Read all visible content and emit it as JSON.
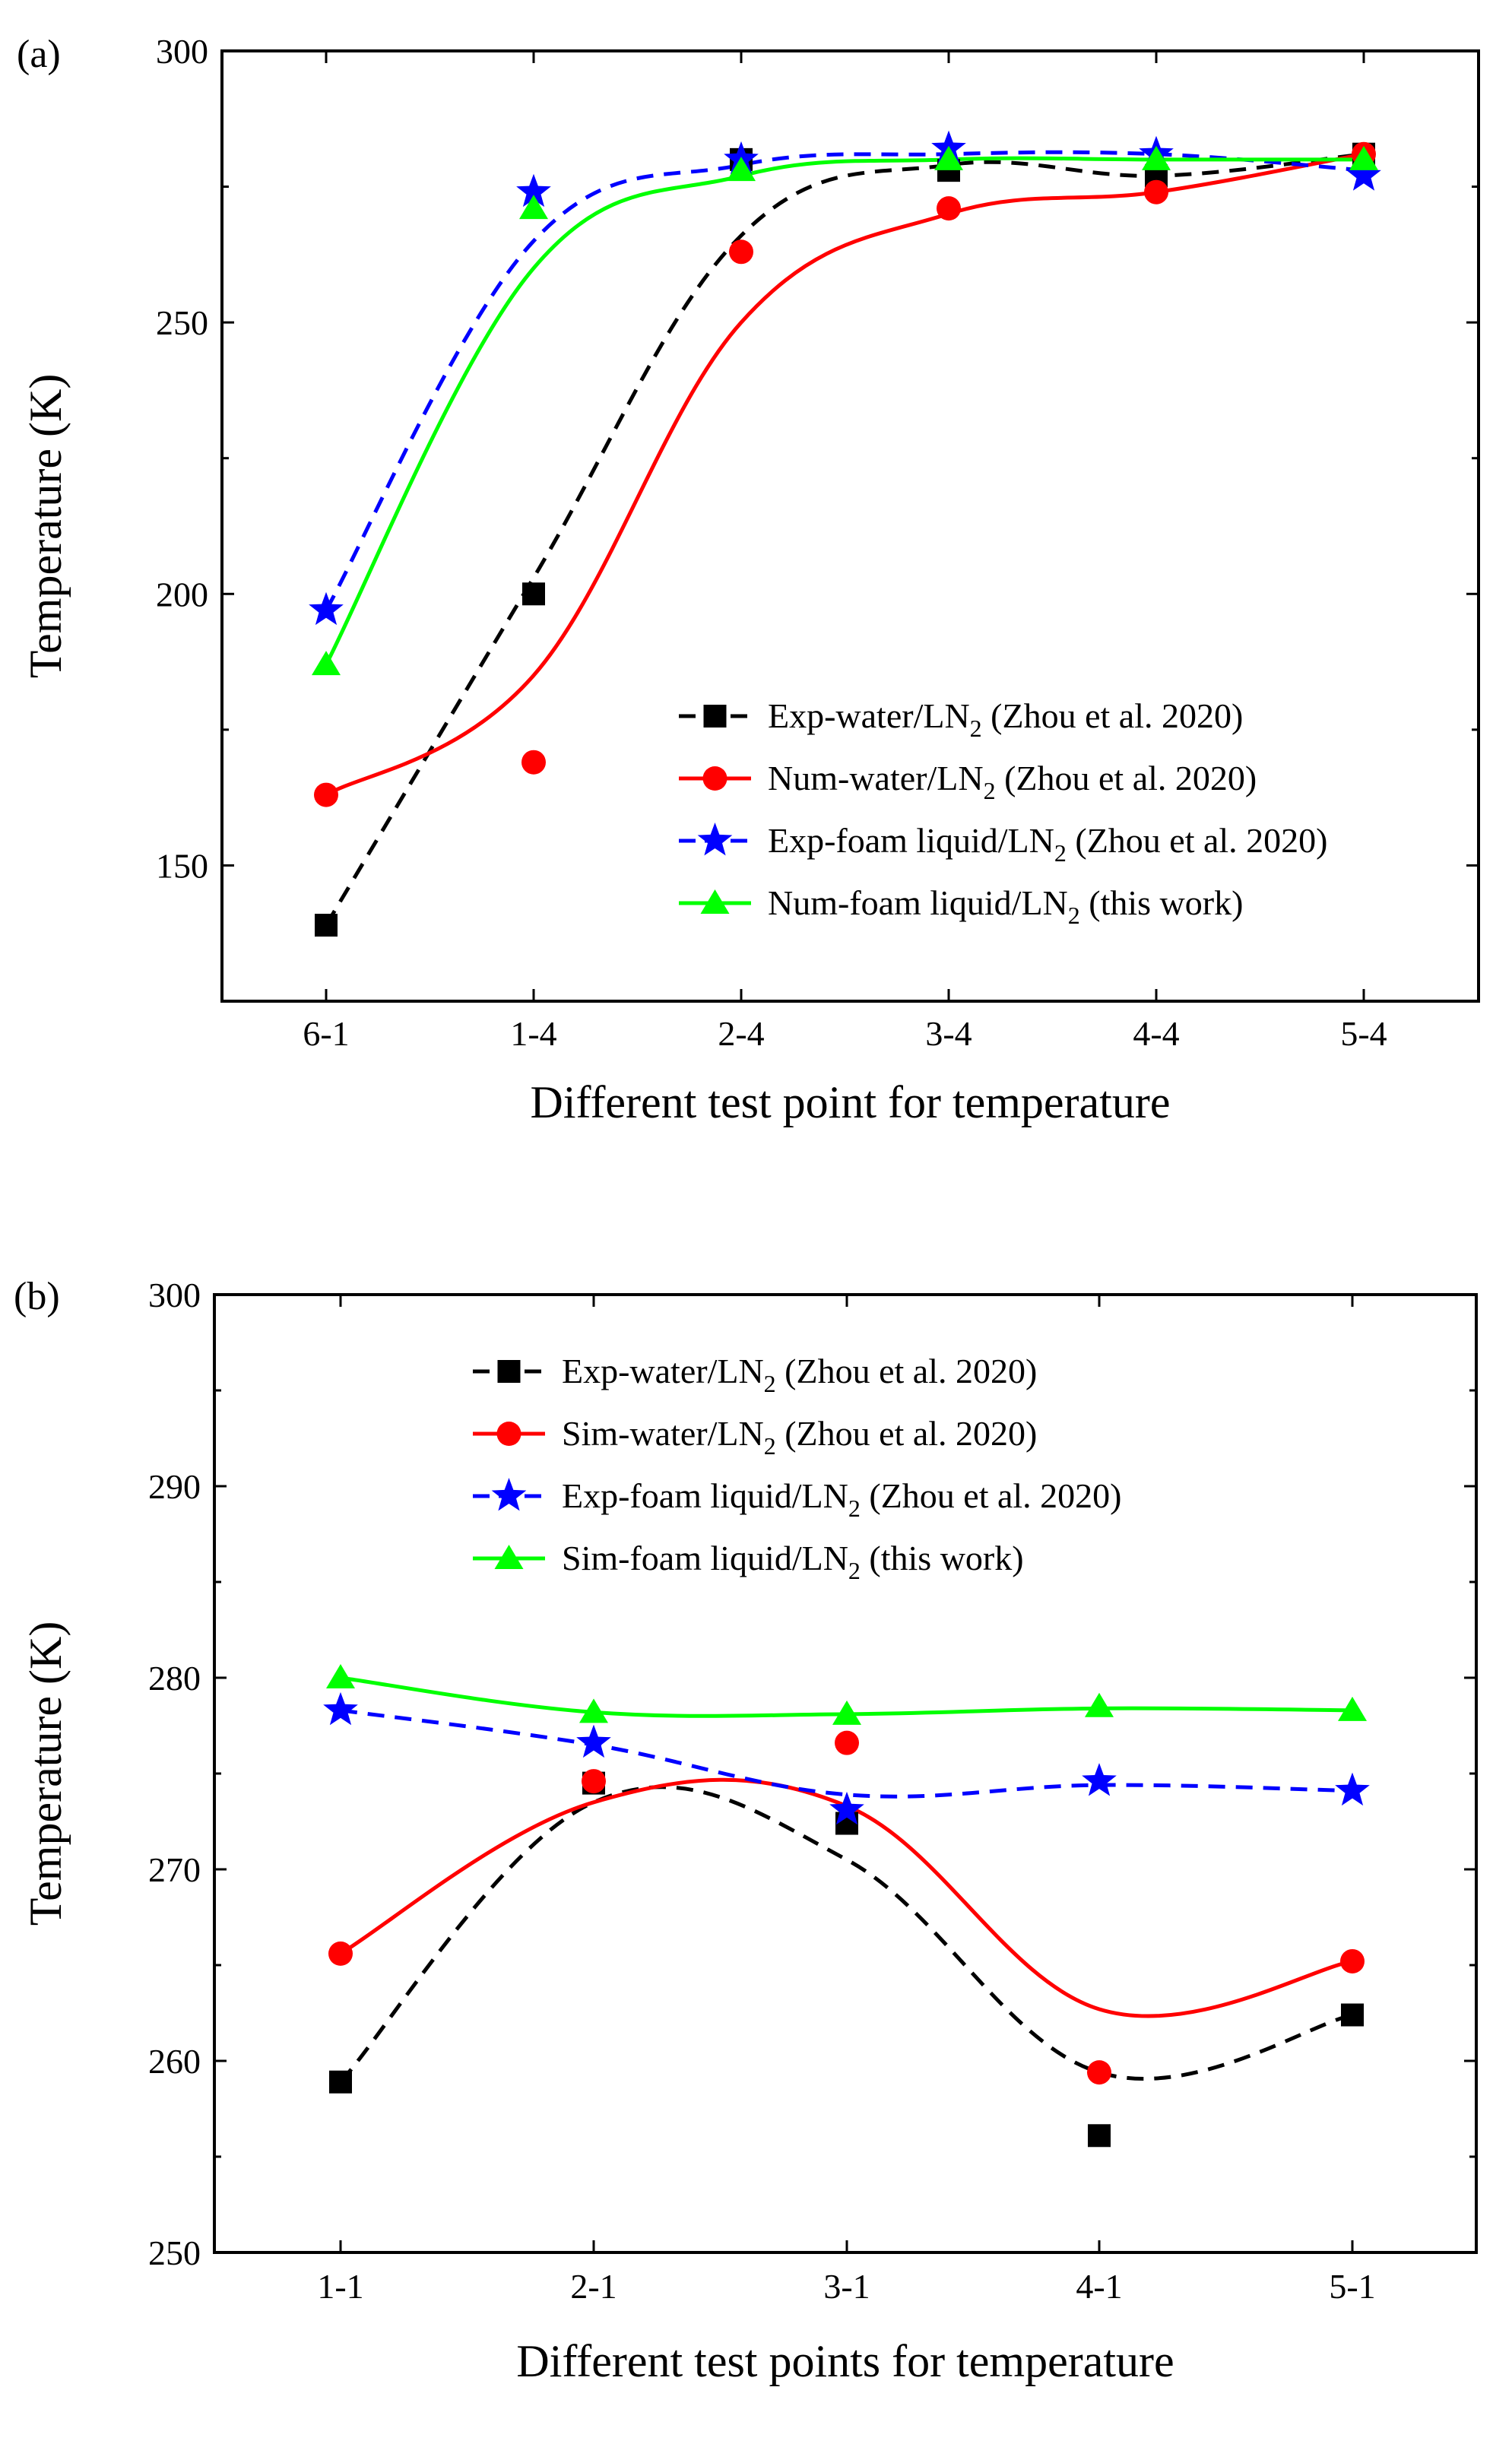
{
  "chart_data": [
    {
      "panel_label": "(a)",
      "type": "line",
      "xlabel": "Different test point for temperature",
      "ylabel": "Temperature (K)",
      "categories": [
        "6-1",
        "1-4",
        "2-4",
        "3-4",
        "4-4",
        "5-4"
      ],
      "ylim": [
        125,
        300
      ],
      "yticks": [
        150,
        200,
        250,
        300
      ],
      "grid": false,
      "legend_position": "lower-right",
      "series": [
        {
          "name": "Exp-water/LN",
          "sub": "2",
          "ref": " (Zhou et al. 2020)",
          "color": "#000000",
          "line": "dashed",
          "marker": "square",
          "values": [
            139,
            200,
            280,
            278,
            277,
            281
          ],
          "curve": [
            139,
            203,
            266,
            279,
            277,
            281
          ]
        },
        {
          "name": "Num-water/LN",
          "sub": "2",
          "ref": " (Zhou et al. 2020)",
          "color": "#ff0000",
          "line": "solid",
          "marker": "circle",
          "values": [
            163,
            169,
            263,
            271,
            274,
            281
          ],
          "curve": [
            163,
            185,
            250,
            270,
            274,
            281
          ]
        },
        {
          "name": "Exp-foam liquid/LN",
          "sub": "2",
          "ref": " (Zhou et al. 2020)",
          "color": "#0000ff",
          "line": "dashed",
          "marker": "star",
          "values": [
            197,
            274,
            280,
            282,
            281,
            277
          ],
          "curve": [
            197,
            265,
            279,
            281,
            281,
            278
          ]
        },
        {
          "name": "Num-foam liquid/LN",
          "sub": "2",
          "ref": " (this work)",
          "color": "#00ff00",
          "line": "solid",
          "marker": "triangle",
          "values": [
            187,
            271,
            278,
            280,
            280,
            280
          ],
          "curve": [
            187,
            260,
            277,
            280,
            280,
            280
          ]
        }
      ]
    },
    {
      "panel_label": "(b)",
      "type": "line",
      "xlabel": "Different test points for temperature",
      "ylabel": "Temperature (K)",
      "categories": [
        "1-1",
        "2-1",
        "3-1",
        "4-1",
        "5-1"
      ],
      "ylim": [
        250,
        300
      ],
      "yticks": [
        250,
        260,
        270,
        280,
        290,
        300
      ],
      "grid": false,
      "legend_position": "top-center",
      "series": [
        {
          "name": "Exp-water/LN",
          "sub": "2",
          "ref": " (Zhou et al. 2020)",
          "color": "#000000",
          "line": "dashed",
          "marker": "square",
          "values": [
            258.9,
            274.5,
            272.4,
            256.1,
            262.4
          ],
          "curve": [
            258.9,
            273.5,
            270.5,
            259.4,
            262.4
          ]
        },
        {
          "name": "Sim-water/LN",
          "sub": "2",
          "ref": " (Zhou et al. 2020)",
          "color": "#ff0000",
          "line": "solid",
          "marker": "circle",
          "values": [
            265.6,
            274.6,
            276.6,
            259.4,
            265.2
          ],
          "curve": [
            265.6,
            273.5,
            273.3,
            262.7,
            265.2
          ]
        },
        {
          "name": "Exp-foam liquid/LN",
          "sub": "2",
          "ref": " (Zhou et al. 2020)",
          "color": "#0000ff",
          "line": "dashed",
          "marker": "star",
          "values": [
            278.3,
            276.6,
            273.1,
            274.6,
            274.1
          ],
          "curve": [
            278.3,
            276.5,
            273.9,
            274.4,
            274.1
          ]
        },
        {
          "name": "Sim-foam liquid/LN",
          "sub": "2",
          "ref": " (this work)",
          "color": "#00ff00",
          "line": "solid",
          "marker": "triangle",
          "values": [
            280.0,
            278.2,
            278.1,
            278.5,
            278.3
          ],
          "curve": [
            280.0,
            278.2,
            278.1,
            278.4,
            278.3
          ]
        }
      ]
    }
  ]
}
